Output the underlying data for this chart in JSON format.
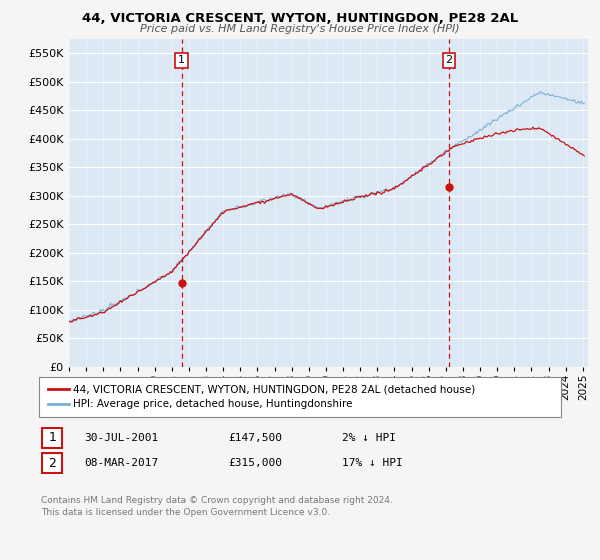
{
  "title": "44, VICTORIA CRESCENT, WYTON, HUNTINGDON, PE28 2AL",
  "subtitle": "Price paid vs. HM Land Registry's House Price Index (HPI)",
  "ylim": [
    0,
    575000
  ],
  "yticks": [
    0,
    50000,
    100000,
    150000,
    200000,
    250000,
    300000,
    350000,
    400000,
    450000,
    500000,
    550000
  ],
  "xlim_start": 1995.0,
  "xlim_end": 2025.3,
  "background_color": "#f5f5f5",
  "plot_bg_color": "#dce9f5",
  "grid_color": "#ffffff",
  "hpi_color": "#7ab0d4",
  "price_color": "#cc1111",
  "sale1_x": 2001.575,
  "sale1_y": 147500,
  "sale2_x": 2017.18,
  "sale2_y": 315000,
  "sale1_label": "30-JUL-2001",
  "sale1_price": "£147,500",
  "sale1_hpi": "2% ↓ HPI",
  "sale2_label": "08-MAR-2017",
  "sale2_price": "£315,000",
  "sale2_hpi": "17% ↓ HPI",
  "legend_line1": "44, VICTORIA CRESCENT, WYTON, HUNTINGDON, PE28 2AL (detached house)",
  "legend_line2": "HPI: Average price, detached house, Huntingdonshire",
  "footnote": "Contains HM Land Registry data © Crown copyright and database right 2024.\nThis data is licensed under the Open Government Licence v3.0."
}
